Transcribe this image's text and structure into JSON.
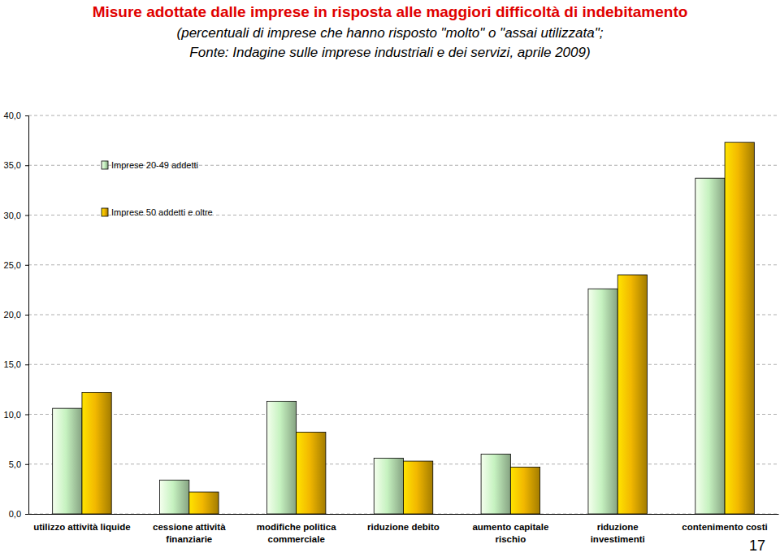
{
  "chart_data": {
    "type": "bar",
    "title": "Misure adottate dalle imprese in risposta alle maggiori difficoltà di indebitamento",
    "subtitle": [
      "(percentuali di imprese che hanno risposto \"molto\" o \"assai utilizzata\";",
      "Fonte: Indagine sulle imprese industriali e dei servizi, aprile 2009)"
    ],
    "categories": [
      "utilizzo attività liquide",
      "cessione attività\nfinanziarie",
      "modifiche politica\ncommerciale",
      "riduzione debito",
      "aumento capitale\nrischio",
      "riduzione\ninvestimenti",
      "contenimento costi"
    ],
    "series": [
      {
        "name": "Imprese 20-49 addetti",
        "color": "#c6f2c0",
        "values": [
          10.6,
          3.4,
          11.3,
          5.6,
          6.0,
          22.6,
          33.7
        ]
      },
      {
        "name": "Imprese 50 addetti e oltre",
        "color": "#f2b800",
        "values": [
          12.2,
          2.2,
          8.2,
          5.3,
          4.7,
          24.0,
          37.3
        ]
      }
    ],
    "ylim": [
      0,
      40
    ],
    "yticks": [
      {
        "value": 0,
        "label": "0,0"
      },
      {
        "value": 5,
        "label": "5,0"
      },
      {
        "value": 10,
        "label": "10,0"
      },
      {
        "value": 15,
        "label": "15,0"
      },
      {
        "value": 20,
        "label": "20,0"
      },
      {
        "value": 25,
        "label": "25,0"
      },
      {
        "value": 30,
        "label": "30,0"
      },
      {
        "value": 35,
        "label": "35,0"
      },
      {
        "value": 40,
        "label": "40,0"
      }
    ],
    "grid": true,
    "legend": "upper left",
    "annotations": [
      "17"
    ]
  }
}
